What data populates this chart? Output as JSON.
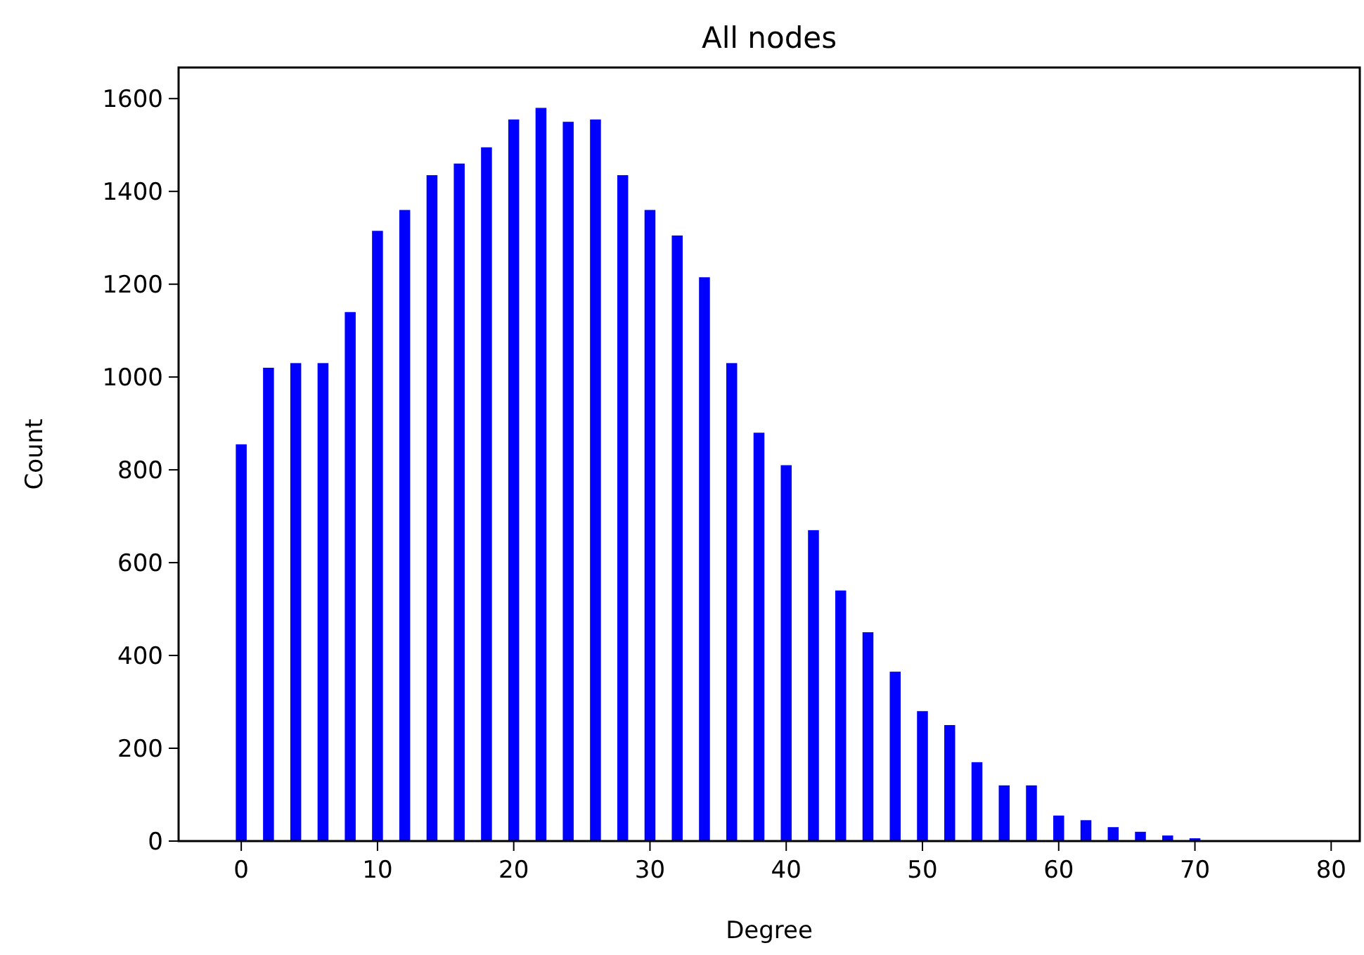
{
  "chart_data": {
    "type": "bar",
    "title": "All nodes",
    "xlabel": "Degree",
    "ylabel": "Count",
    "x": [
      0,
      2,
      4,
      6,
      8,
      10,
      12,
      14,
      16,
      18,
      20,
      22,
      24,
      26,
      28,
      30,
      32,
      34,
      36,
      38,
      40,
      42,
      44,
      46,
      48,
      50,
      52,
      54,
      56,
      58,
      60,
      62,
      64,
      66,
      68,
      70
    ],
    "values": [
      855,
      1020,
      1030,
      1030,
      1140,
      1315,
      1360,
      1435,
      1460,
      1495,
      1555,
      1580,
      1550,
      1555,
      1435,
      1360,
      1305,
      1215,
      1030,
      880,
      810,
      670,
      540,
      450,
      365,
      280,
      250,
      170,
      120,
      120,
      55,
      45,
      30,
      20,
      12,
      6
    ],
    "color": "#0000ff",
    "xlim": [
      -4.6,
      82.1
    ],
    "xticks": [
      0,
      10,
      20,
      30,
      40,
      50,
      60,
      70,
      80
    ],
    "ylim": [
      0,
      1667
    ],
    "yticks": [
      0,
      200,
      400,
      600,
      800,
      1000,
      1200,
      1400,
      1600
    ],
    "grid": false
  }
}
